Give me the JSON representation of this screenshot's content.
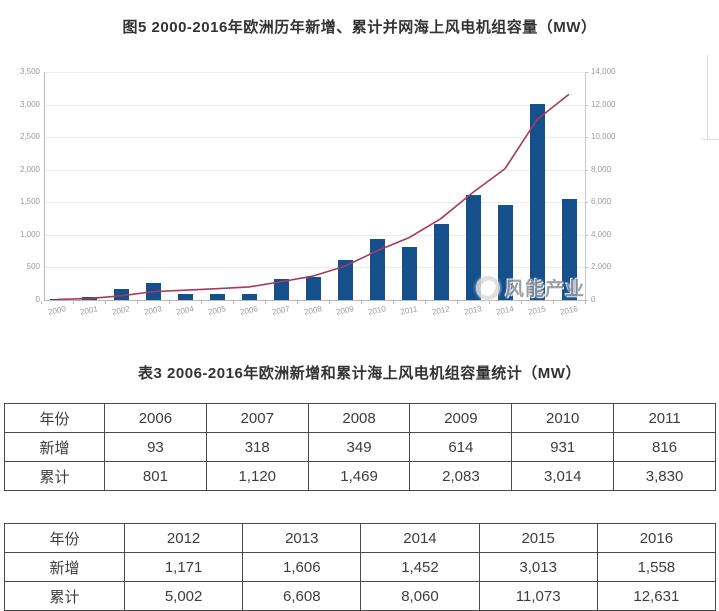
{
  "page": {
    "figure_title": "图5  2000-2016年欧洲历年新增、累计并网海上风电机组容量（MW）",
    "table_title": "表3  2006-2016年欧洲新增和累计海上风电机组容量统计（MW）",
    "watermark_text": "风能产业"
  },
  "chart_data": {
    "type": "bar",
    "title": "图5  2000-2016年欧洲历年新增、累计并网海上风电机组容量（MW）",
    "x": [
      "2000",
      "2001",
      "2002",
      "2003",
      "2004",
      "2005",
      "2006",
      "2007",
      "2008",
      "2009",
      "2010",
      "2011",
      "2012",
      "2013",
      "2014",
      "2015",
      "2016"
    ],
    "series": [
      {
        "name": "新增",
        "type": "bar",
        "axis": "left",
        "color": "#15508c",
        "values": [
          4,
          51,
          170,
          259,
          90,
          90,
          93,
          318,
          349,
          614,
          931,
          816,
          1171,
          1606,
          1452,
          3013,
          1558
        ]
      },
      {
        "name": "累计",
        "type": "line",
        "axis": "right",
        "color": "#a8395a",
        "values": [
          36,
          86,
          256,
          515,
          605,
          695,
          801,
          1120,
          1469,
          2083,
          3014,
          3830,
          5002,
          6608,
          8060,
          11073,
          12631
        ]
      }
    ],
    "left_axis": {
      "min": 0,
      "max": 3500,
      "step": 500,
      "ticks": [
        "0",
        "500",
        "1,000",
        "1,500",
        "2,000",
        "2,500",
        "3,000",
        "3,500"
      ]
    },
    "right_axis": {
      "min": 0,
      "max": 14000,
      "step": 2000,
      "ticks": [
        "0",
        "2,000",
        "4,000",
        "6,000",
        "8,000",
        "10,000",
        "12,000",
        "14,000"
      ]
    },
    "grid": true,
    "legend": "none",
    "xlabel": "",
    "ylabel": ""
  },
  "tables": [
    {
      "columns": [
        "年份",
        "2006",
        "2007",
        "2008",
        "2009",
        "2010",
        "2011"
      ],
      "rows": [
        [
          "新增",
          "93",
          "318",
          "349",
          "614",
          "931",
          "816"
        ],
        [
          "累计",
          "801",
          "1,120",
          "1,469",
          "2,083",
          "3,014",
          "3,830"
        ]
      ]
    },
    {
      "columns": [
        "年份",
        "2012",
        "2013",
        "2014",
        "2015",
        "2016"
      ],
      "rows": [
        [
          "新增",
          "1,171",
          "1,606",
          "1,452",
          "3,013",
          "1,558"
        ],
        [
          "累计",
          "5,002",
          "6,608",
          "8,060",
          "11,073",
          "12,631"
        ]
      ]
    }
  ]
}
